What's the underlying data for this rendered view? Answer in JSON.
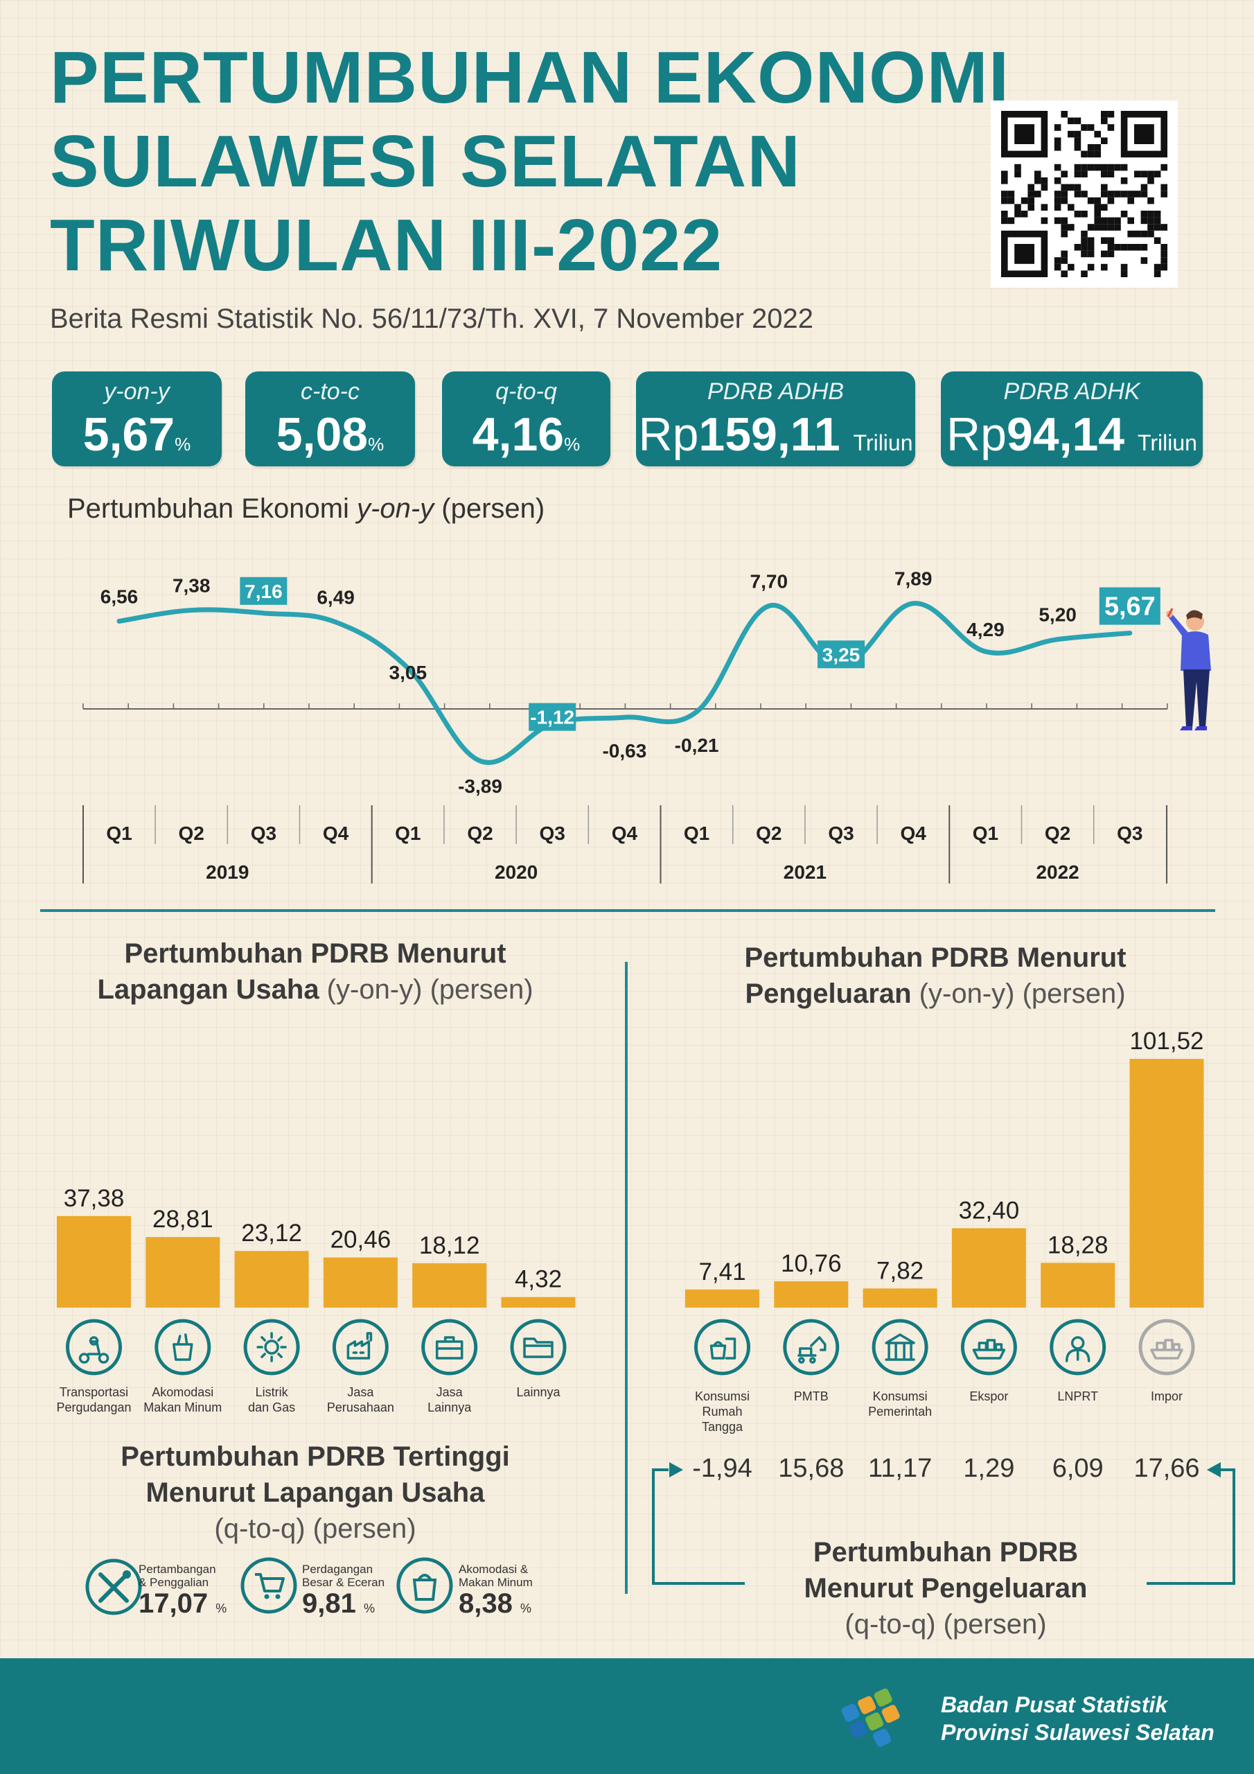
{
  "title": {
    "line1": "PERTUMBUHAN EKONOMI",
    "line2": "SULAWESI SELATAN",
    "line3": "TRIWULAN III-2022"
  },
  "subtitle": "Berita Resmi Statistik No. 56/11/73/Th. XVI, 7 November 2022",
  "cards": {
    "yoy": {
      "label": "y-on-y",
      "value": "5,67",
      "unit": "%"
    },
    "ctoc": {
      "label": "c-to-c",
      "value": "5,08",
      "unit": "%"
    },
    "qtoq": {
      "label": "q-to-q",
      "value": "4,16",
      "unit": "%"
    },
    "adhb": {
      "label": "PDRB ADHB",
      "prefix": "Rp",
      "value": "159,11",
      "unit": "Triliun"
    },
    "adhk": {
      "label": "PDRB ADHK",
      "prefix": "Rp",
      "value": "94,14",
      "unit": "Triliun"
    }
  },
  "line_section": {
    "title_bold": "Pertumbuhan Ekonomi",
    "title_italic": "y-on-y",
    "title_rest": "(persen)"
  },
  "chart_data": [
    {
      "type": "line",
      "title": "Pertumbuhan Ekonomi y-on-y (persen)",
      "x": [
        "Q1",
        "Q2",
        "Q3",
        "Q4",
        "Q1",
        "Q2",
        "Q3",
        "Q4",
        "Q1",
        "Q2",
        "Q3",
        "Q4",
        "Q1",
        "Q2",
        "Q3"
      ],
      "groups": [
        {
          "label": "2019",
          "count": 4
        },
        {
          "label": "2020",
          "count": 4
        },
        {
          "label": "2021",
          "count": 4
        },
        {
          "label": "2022",
          "count": 3
        }
      ],
      "values": [
        6.56,
        7.38,
        7.16,
        6.49,
        3.05,
        -3.89,
        -1.12,
        -0.63,
        -0.21,
        7.7,
        3.25,
        7.89,
        4.29,
        5.2,
        5.67
      ],
      "labels": [
        "6,56",
        "7,38",
        "7,16",
        "6,49",
        "3,05",
        "-3,89",
        "-1,12",
        "-0,63",
        "-0,21",
        "7,70",
        "3,25",
        "7,89",
        "4,29",
        "5,20",
        "5,67"
      ],
      "highlighted": [
        2,
        6,
        10,
        14
      ],
      "line_color": "#2aa3b2",
      "highlight_color": "#2aa3b2"
    },
    {
      "type": "bar",
      "title": "Pertumbuhan PDRB Menurut Lapangan Usaha (y-on-y) (persen)",
      "categories": [
        "Transportasi Pergudangan",
        "Akomodasi Makan Minum",
        "Listrik dan Gas",
        "Jasa Perusahaan",
        "Jasa Lainnya",
        "Lainnya"
      ],
      "values": [
        37.38,
        28.81,
        23.12,
        20.46,
        18.12,
        4.32
      ],
      "labels": [
        "37,38",
        "28,81",
        "23,12",
        "20,46",
        "18,12",
        "4,32"
      ],
      "ylim": [
        0,
        101.52
      ],
      "color": "#eba829"
    },
    {
      "type": "bar",
      "title": "Pertumbuhan PDRB Menurut Pengeluaran (y-on-y) (persen)",
      "categories": [
        "Konsumsi Rumah Tangga",
        "PMTB",
        "Konsumsi Pemerintah",
        "Ekspor",
        "LNPRT",
        "Impor"
      ],
      "values": [
        7.41,
        10.76,
        7.82,
        32.4,
        18.28,
        101.52
      ],
      "labels": [
        "7,41",
        "10,76",
        "7,82",
        "32,40",
        "18,28",
        "101,52"
      ],
      "ylim": [
        0,
        101.52
      ],
      "color": "#eba829"
    },
    {
      "type": "table",
      "title": "Pertumbuhan PDRB Menurut Pengeluaran (q-to-q) (persen)",
      "categories": [
        "Konsumsi Rumah Tangga",
        "PMTB",
        "Konsumsi Pemerintah",
        "Ekspor",
        "LNPRT",
        "Impor"
      ],
      "values": [
        -1.94,
        15.68,
        11.17,
        1.29,
        6.09,
        17.66
      ],
      "labels": [
        "-1,94",
        "15,68",
        "11,17",
        "1,29",
        "6,09",
        "17,66"
      ]
    },
    {
      "type": "table",
      "title": "Pertumbuhan PDRB Tertinggi Menurut Lapangan Usaha (q-to-q) (persen)",
      "categories": [
        "Pertambangan & Penggalian",
        "Perdagangan Besar & Eceran",
        "Akomodasi & Makan Minum"
      ],
      "values": [
        17.07,
        9.81,
        8.38
      ],
      "labels": [
        "17,07",
        "9,81",
        "8,38"
      ]
    }
  ],
  "left_panel": {
    "title_line1": "Pertumbuhan PDRB Menurut",
    "title_line2_bold": "Lapangan Usaha",
    "title_line2_rest": " (y-on-y) (persen)",
    "icon_labels": [
      [
        "Transportasi",
        "Pergudangan"
      ],
      [
        "Akomodasi",
        "Makan Minum"
      ],
      [
        "Listrik",
        "dan Gas"
      ],
      [
        "Jasa",
        "Perusahaan"
      ],
      [
        "Jasa",
        "Lainnya"
      ],
      [
        "Lainnya",
        ""
      ]
    ],
    "icons": [
      "scooter-icon",
      "food-bag-icon",
      "sun-icon",
      "factory-icon",
      "briefcase-icon",
      "folder-icon"
    ]
  },
  "right_panel": {
    "title_line1": "Pertumbuhan PDRB Menurut",
    "title_line2_bold": "Pengeluaran",
    "title_line2_rest": " (y-on-y) (persen)",
    "icon_labels": [
      [
        "Konsumsi",
        "Rumah",
        "Tangga"
      ],
      [
        "PMTB",
        "",
        ""
      ],
      [
        "Konsumsi",
        "Pemerintah",
        ""
      ],
      [
        "Ekspor",
        "",
        ""
      ],
      [
        "LNPRT",
        "",
        ""
      ],
      [
        "Impor",
        "",
        ""
      ]
    ],
    "icons": [
      "shopping-icon",
      "excavator-icon",
      "government-building-icon",
      "cargo-ship-icon",
      "person-icon",
      "cargo-ship-icon"
    ],
    "qtoq_title_line1": "Pertumbuhan PDRB",
    "qtoq_title_line2": "Menurut Pengeluaran",
    "qtoq_title_line3": "(q-to-q) (persen)"
  },
  "highest": {
    "title_line1": "Pertumbuhan PDRB Tertinggi",
    "title_line2": "Menurut Lapangan Usaha",
    "title_line3": "(q-to-q) (persen)",
    "items": [
      {
        "line1": "Pertambangan",
        "line2": "& Penggalian",
        "value": "17,07",
        "unit": "%"
      },
      {
        "line1": "Perdagangan",
        "line2": "Besar & Eceran",
        "value": "9,81",
        "unit": "%"
      },
      {
        "line1": "Akomodasi &",
        "line2": "Makan Minum",
        "value": "8,38",
        "unit": "%"
      }
    ]
  },
  "footer": {
    "org_line1": "Badan Pusat Statistik",
    "org_line2": "Provinsi Sulawesi Selatan"
  },
  "colors": {
    "teal": "#147a80",
    "title_teal": "#157f86",
    "line": "#2aa3b2",
    "bar": "#eba829",
    "background": "#f6eedf"
  }
}
